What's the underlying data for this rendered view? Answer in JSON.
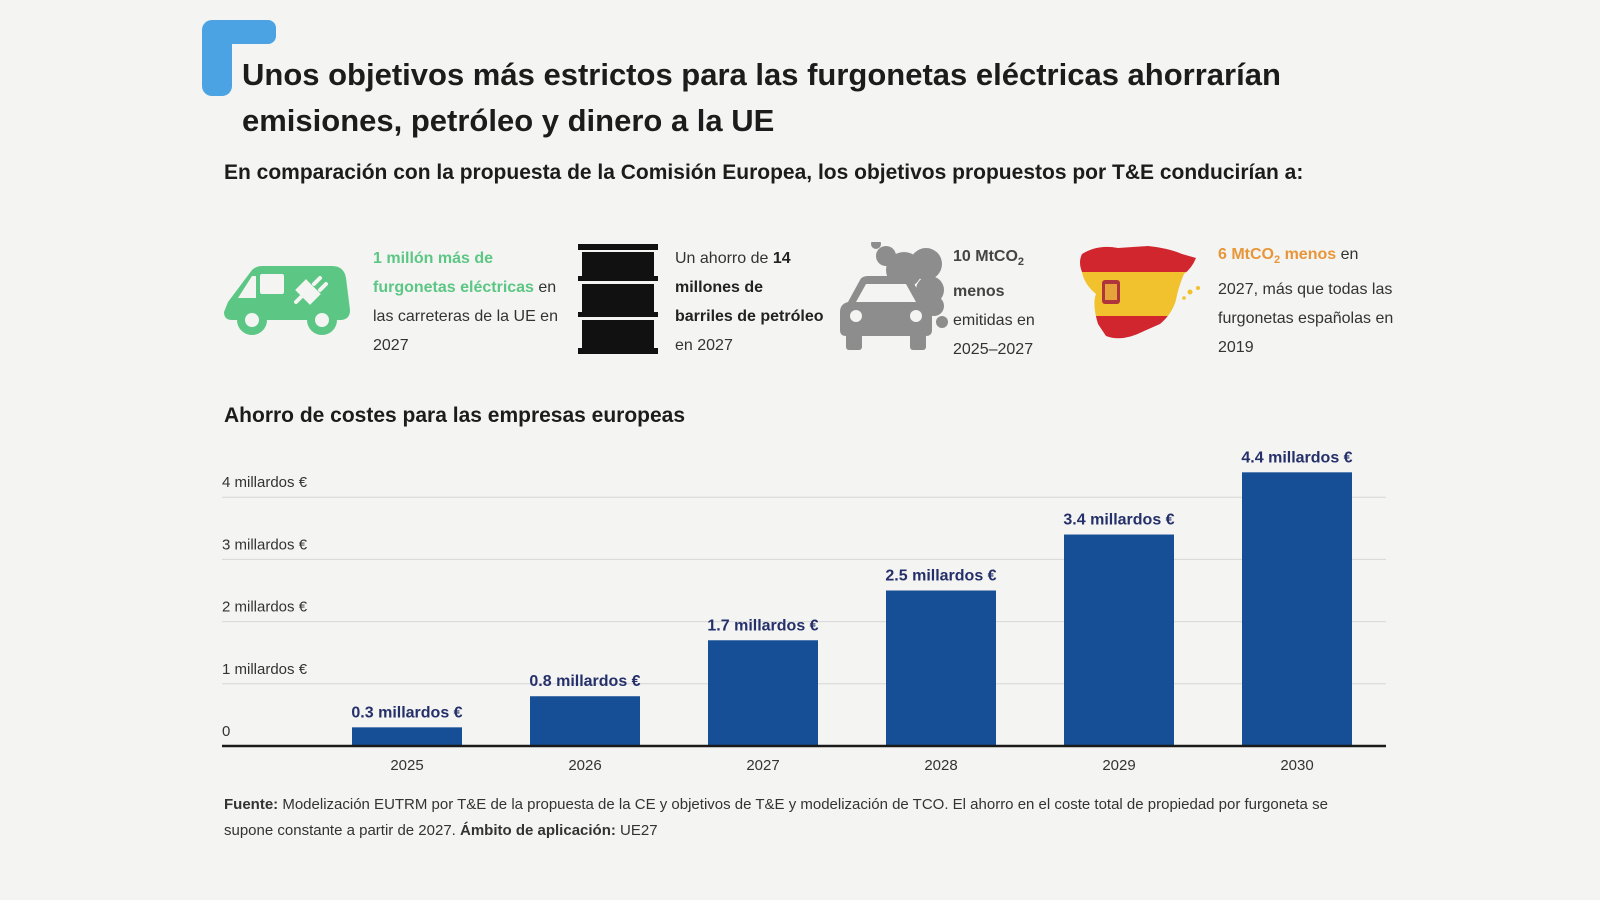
{
  "header": {
    "title": "Unos objetivos más estrictos para las furgonetas eléctricas ahorrarían emisiones, petróleo y dinero a la UE",
    "subtitle": "En comparación con la propuesta de la Comisión Europea, los objetivos propuestos por T&E conducirían a:"
  },
  "stats": [
    {
      "icon": "electric-van-icon",
      "highlight": "1 millón más de furgonetas eléctricas",
      "rest": "en las carreteras de la UE en 2027",
      "color": "#5cc784"
    },
    {
      "icon": "oil-barrel-icon",
      "pre": "Un ahorro de",
      "highlight": "14 millones de barriles de petróleo",
      "rest": "en 2027"
    },
    {
      "icon": "polluting-car-icon",
      "highlight_main": "10 MtCO",
      "highlight_sub": "2",
      "highlight_tail": "menos",
      "rest": "emitidas en 2025–2027"
    },
    {
      "icon": "spain-map-flag-icon",
      "highlight_main": "6 MtCO",
      "highlight_sub": "2",
      "highlight_tail": "menos",
      "rest_inline": "en",
      "rest": "2027, más que todas las furgonetas españolas en 2019",
      "color": "#e8963a"
    }
  ],
  "chart_data": {
    "type": "bar",
    "title": "Ahorro de costes para las empresas europeas",
    "categories": [
      "2025",
      "2026",
      "2027",
      "2028",
      "2029",
      "2030"
    ],
    "values": [
      0.3,
      0.8,
      1.7,
      2.5,
      3.4,
      4.4
    ],
    "data_labels": [
      "0.3 millardos €",
      "0.8 millardos €",
      "1.7 millardos €",
      "2.5 millardos €",
      "3.4 millardos €",
      "4.4 millardos €"
    ],
    "y_ticks": [
      0,
      1,
      2,
      3,
      4
    ],
    "y_tick_labels": [
      "0",
      "1 millardos €",
      "2 millardos €",
      "3 millardos €",
      "4 millardos €"
    ],
    "ylim": [
      0,
      4.4
    ],
    "grid": true,
    "bar_color": "#164f96",
    "label_color": "#25306a"
  },
  "footer": {
    "source_label": "Fuente:",
    "source_text": "Modelización EUTRM por T&E de la propuesta de la CE y objetivos de T&E y modelización de TCO. El ahorro en el coste total de propiedad por furgoneta se supone constante a partir de 2027.",
    "scope_label": "Ámbito de aplicación:",
    "scope_text": "UE27"
  },
  "colors": {
    "accent_blue": "#4ba3e3",
    "background": "#f4f4f2"
  }
}
